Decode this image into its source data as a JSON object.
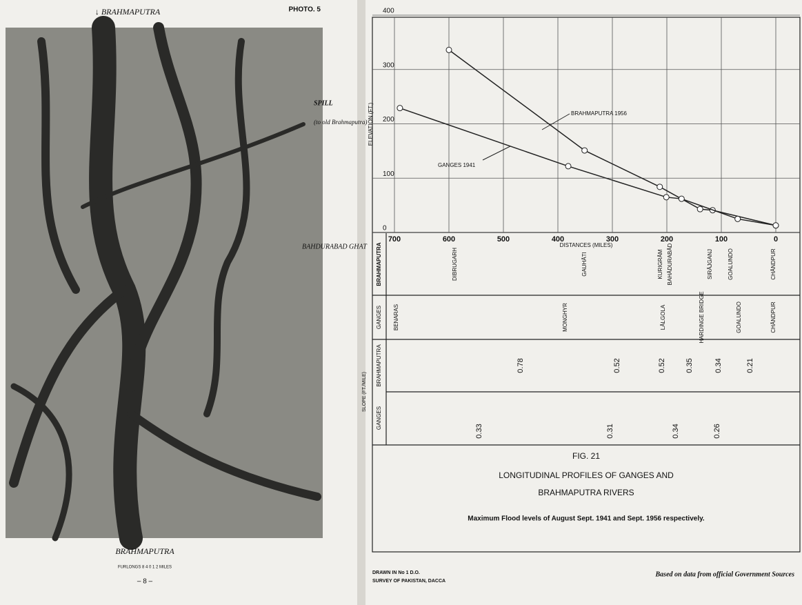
{
  "photo": {
    "label": "PHOTO. 5",
    "top": "↓ BRAHMAPUTRA",
    "spill": "SPILL",
    "spill_note": "(to old Brahmaputra)",
    "ghat": "BAHDURABAD GHAT",
    "bottom": "BRAHMAPUTRA",
    "scale": "FURLONGS 8 4 0 1 2 MILES",
    "page": "– 8 –"
  },
  "chart_data": {
    "type": "line",
    "x_label": "DISTANCES (MILES)",
    "y_label": "ELEVATION (FT.)",
    "xlim": [
      700,
      0
    ],
    "xticks": [
      700,
      600,
      500,
      400,
      300,
      200,
      100,
      0
    ],
    "ylim": [
      0,
      400
    ],
    "yticks": [
      0,
      100,
      200,
      300,
      400
    ],
    "grid": true,
    "series": [
      {
        "name": "BRAHMAPUTRA 1956",
        "color": "#222",
        "x": [
          600,
          351,
          213,
          139,
          116,
          0
        ],
        "values": [
          336,
          151,
          84,
          43,
          41,
          13
        ]
      },
      {
        "name": "GANGES 1941",
        "color": "#222",
        "x": [
          690,
          381,
          201,
          173,
          70,
          0
        ],
        "values": [
          229,
          122,
          65,
          62,
          25,
          13
        ]
      }
    ]
  },
  "stations": {
    "brahmaputra": {
      "label": "BRAHMAPUTRA",
      "names": [
        "DIBRUGARH",
        "GAUHĀTI",
        "KURIGRĀM",
        "BAHĀDURABĀD",
        "SIRĀJGANJ",
        "GOALUNDO",
        "CHĀNDPUR"
      ]
    },
    "ganges": {
      "label": "GANGES",
      "names": [
        "BENARAS",
        "MONGHYR",
        "LĀLGOLA",
        "HARDINGE BRIDGE",
        "GOALUNDO",
        "CHĀNDPUR"
      ]
    }
  },
  "slopes": {
    "label": "SLOPE (FT./MILE)",
    "brahmaputra": {
      "label": "BRAHMAPUTRA",
      "values": [
        0.78,
        0.52,
        0.52,
        0.35,
        0.34,
        0.21
      ]
    },
    "ganges": {
      "label": "GANGES",
      "values": [
        0.33,
        0.31,
        0.34,
        0.26
      ]
    }
  },
  "caption": {
    "fig": "FIG. 21",
    "title1": "LONGITUDINAL PROFILES OF GANGES AND",
    "title2": "BRAHMAPUTRA RIVERS",
    "note": "Maximum Flood levels of August Sept. 1941 and Sept. 1956 respectively."
  },
  "credits": {
    "drawn": "DRAWN IN No 1 D.O.",
    "survey": "SURVEY OF PAKISTAN, DACCA",
    "source": "Based on data from official Government Sources"
  }
}
